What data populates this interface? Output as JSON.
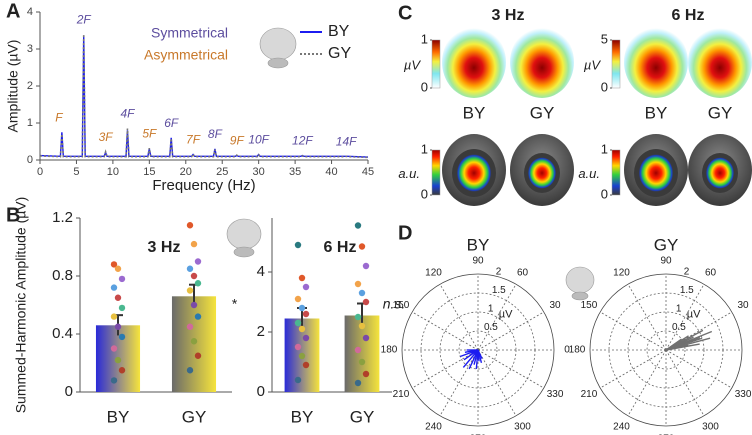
{
  "chart_data": [
    {
      "panel": "A",
      "type": "line",
      "xlabel": "Frequency (Hz)",
      "ylabel": "Amplitude (µV)",
      "x": [
        0,
        2.8,
        3,
        3.2,
        5.8,
        6,
        6.2,
        8.8,
        9,
        9.2,
        11.8,
        12,
        12.2,
        14.8,
        15,
        15.2,
        17.8,
        18,
        18.2,
        20.8,
        21,
        21.2,
        23.8,
        24,
        24.2,
        26.8,
        27,
        27.2,
        29.8,
        30,
        30.2,
        35.8,
        36,
        36.2,
        41.8,
        42,
        42.2,
        45
      ],
      "series": [
        {
          "name": "BY",
          "color": "#1c1cf0",
          "dashed": false,
          "values": [
            0.12,
            0.1,
            0.75,
            0.1,
            0.1,
            3.35,
            0.1,
            0.1,
            0.2,
            0.1,
            0.1,
            0.8,
            0.1,
            0.1,
            0.3,
            0.1,
            0.1,
            0.6,
            0.1,
            0.1,
            0.15,
            0.1,
            0.1,
            0.3,
            0.1,
            0.1,
            0.12,
            0.1,
            0.1,
            0.15,
            0.1,
            0.1,
            0.12,
            0.1,
            0.1,
            0.1,
            0.1,
            0.08
          ]
        },
        {
          "name": "GY",
          "color": "#777777",
          "dashed": true,
          "values": [
            0.11,
            0.09,
            0.7,
            0.09,
            0.09,
            3.4,
            0.09,
            0.09,
            0.22,
            0.09,
            0.09,
            0.85,
            0.09,
            0.09,
            0.32,
            0.09,
            0.09,
            0.58,
            0.09,
            0.09,
            0.16,
            0.09,
            0.09,
            0.28,
            0.09,
            0.09,
            0.13,
            0.09,
            0.09,
            0.14,
            0.09,
            0.09,
            0.11,
            0.09,
            0.09,
            0.1,
            0.09,
            0.07
          ]
        }
      ],
      "xlim": [
        0,
        45
      ],
      "ylim": [
        0,
        4
      ],
      "xticks": [
        0,
        5,
        10,
        15,
        20,
        25,
        30,
        35,
        40,
        45
      ],
      "yticks": [
        0,
        1,
        2,
        3,
        4
      ],
      "notes": [
        {
          "text": "Symmetrical",
          "color": "#5c4d9e"
        },
        {
          "text": "Asymmetrical",
          "color": "#c8782a"
        }
      ],
      "harmonic_labels": [
        {
          "label": "F",
          "x": 3,
          "color": "#c8782a"
        },
        {
          "label": "2F",
          "x": 6,
          "color": "#5c4d9e"
        },
        {
          "label": "3F",
          "x": 9,
          "color": "#c8782a"
        },
        {
          "label": "4F",
          "x": 12,
          "color": "#5c4d9e"
        },
        {
          "label": "5F",
          "x": 15,
          "color": "#c8782a"
        },
        {
          "label": "6F",
          "x": 18,
          "color": "#5c4d9e"
        },
        {
          "label": "7F",
          "x": 21,
          "color": "#c8782a"
        },
        {
          "label": "8F",
          "x": 24,
          "color": "#5c4d9e"
        },
        {
          "label": "9F",
          "x": 27,
          "color": "#c8782a"
        },
        {
          "label": "10F",
          "x": 30,
          "color": "#5c4d9e"
        },
        {
          "label": "12F",
          "x": 36,
          "color": "#5c4d9e"
        },
        {
          "label": "14F",
          "x": 42,
          "color": "#5c4d9e"
        }
      ]
    },
    {
      "panel": "B",
      "type": "bar",
      "title": "3 Hz",
      "ylabel": "Summed-Harmonic Amplitude (µV)",
      "categories": [
        "BY",
        "GY"
      ],
      "values": [
        0.46,
        0.66
      ],
      "errors": [
        0.07,
        0.08
      ],
      "gradients": [
        [
          "#2a2ad8",
          "#f6e43c"
        ],
        [
          "#6a6a6a",
          "#f6e43c"
        ]
      ],
      "points": [
        [
          0.88,
          0.85,
          0.78,
          0.72,
          0.65,
          0.58,
          0.52,
          0.45,
          0.38,
          0.3,
          0.22,
          0.15,
          0.08
        ],
        [
          1.15,
          1.02,
          0.9,
          0.85,
          0.8,
          0.75,
          0.7,
          0.6,
          0.52,
          0.45,
          0.35,
          0.25,
          0.15
        ]
      ],
      "point_colors": [
        "#e0582a",
        "#f2a34a",
        "#9b6ad0",
        "#5aa0e0",
        "#c84a4a",
        "#4ab890",
        "#e8c040",
        "#7a4aa8",
        "#2a7ab0",
        "#d06a9a",
        "#8aa040",
        "#b0402a",
        "#3a6a8a"
      ],
      "ylim": [
        0,
        1.2
      ],
      "yticks": [
        0,
        0.4,
        0.8,
        1.2
      ],
      "annotation": "*"
    },
    {
      "type": "bar",
      "title": "6 Hz",
      "categories": [
        "BY",
        "GY"
      ],
      "values": [
        2.45,
        2.55
      ],
      "errors": [
        0.35,
        0.4
      ],
      "gradients": [
        [
          "#2a2ad8",
          "#f6e43c"
        ],
        [
          "#6a6a6a",
          "#f6e43c"
        ]
      ],
      "points": [
        [
          4.9,
          3.8,
          3.5,
          3.1,
          2.8,
          2.6,
          2.3,
          2.1,
          1.8,
          1.5,
          1.2,
          0.9,
          0.4
        ],
        [
          5.55,
          4.85,
          4.2,
          3.6,
          3.3,
          3.0,
          2.5,
          2.2,
          1.8,
          1.4,
          1.0,
          0.6,
          0.3
        ]
      ],
      "point_colors": [
        "#2a7a80",
        "#e0582a",
        "#9b6ad0",
        "#f2a34a",
        "#5aa0e0",
        "#c84a4a",
        "#4ab890",
        "#e8c040",
        "#7a4aa8",
        "#d06a9a",
        "#8aa040",
        "#b0402a",
        "#3a6a8a"
      ],
      "ylim": [
        0,
        5.8
      ],
      "yticks": [
        0,
        2,
        4
      ],
      "annotation": "n.s."
    },
    {
      "panel": "C",
      "type": "topomap",
      "columns": [
        {
          "title": "3 Hz",
          "conditions": [
            "BY",
            "GY"
          ],
          "rows": [
            {
              "unit": "µV",
              "cbar_ticks": [
                0,
                1
              ]
            },
            {
              "unit": "a.u.",
              "cbar_ticks": [
                0,
                1
              ]
            }
          ]
        },
        {
          "title": "6 Hz",
          "conditions": [
            "BY",
            "GY"
          ],
          "rows": [
            {
              "unit": "µV",
              "cbar_ticks": [
                0,
                5
              ]
            },
            {
              "unit": "a.u.",
              "cbar_ticks": [
                0,
                1
              ]
            }
          ]
        }
      ]
    },
    {
      "panel": "D",
      "type": "polar",
      "title": "BY",
      "color": "#1c1cf0",
      "angles": [
        190,
        200,
        215,
        230,
        245,
        255,
        265,
        275,
        285,
        295,
        180,
        205
      ],
      "magnitudes": [
        0.35,
        0.5,
        0.45,
        0.6,
        0.55,
        0.4,
        0.5,
        0.3,
        0.35,
        0.25,
        0.3,
        0.2
      ],
      "rlim": [
        0,
        2
      ],
      "rticks": [
        0.5,
        1,
        1.5,
        2
      ],
      "runit": "µV",
      "angle_ticks": [
        0,
        30,
        60,
        90,
        120,
        150,
        180,
        210,
        240,
        270,
        300,
        330
      ]
    },
    {
      "type": "polar",
      "title": "GY",
      "color": "#707070",
      "angles": [
        10,
        15,
        18,
        22,
        25,
        28,
        32,
        12,
        20,
        35
      ],
      "magnitudes": [
        0.9,
        1.2,
        1.0,
        1.3,
        0.8,
        1.1,
        0.7,
        0.6,
        0.95,
        0.5
      ],
      "rlim": [
        0,
        2
      ],
      "rticks": [
        0.5,
        1,
        1.5,
        2
      ],
      "runit": "µV",
      "angle_ticks": [
        0,
        30,
        60,
        90,
        120,
        150,
        180,
        210,
        240,
        270,
        300,
        330
      ]
    }
  ]
}
